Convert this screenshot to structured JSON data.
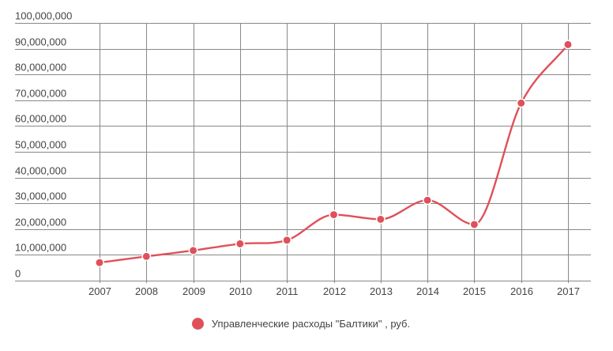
{
  "chart_data": {
    "type": "line",
    "title": "",
    "xlabel": "",
    "ylabel": "",
    "categories": [
      "2007",
      "2008",
      "2009",
      "2010",
      "2011",
      "2012",
      "2013",
      "2014",
      "2015",
      "2016",
      "2017"
    ],
    "series": [
      {
        "name": "Управленческие расходы \"Балтики\" , руб.",
        "color": "#e0505a",
        "values": [
          7000000,
          9400000,
          11700000,
          14300000,
          15700000,
          25600000,
          23800000,
          31200000,
          21800000,
          68900000,
          91600000
        ]
      }
    ],
    "ylim": [
      0,
      100000000
    ],
    "y_ticks": [
      0,
      10000000,
      20000000,
      30000000,
      40000000,
      50000000,
      60000000,
      70000000,
      80000000,
      90000000,
      100000000
    ],
    "y_tick_labels": [
      "0",
      "10,000,000",
      "20,000,000",
      "30,000,000",
      "40,000,000",
      "50,000,000",
      "60,000,000",
      "70,000,000",
      "80,000,000",
      "90,000,000",
      "100,000,000"
    ],
    "grid": true,
    "smooth": true,
    "legend_position": "bottom"
  },
  "legend": {
    "label": "Управленческие расходы \"Балтики\" , руб."
  },
  "colors": {
    "series": "#e0505a",
    "grid": "#888888",
    "text": "#444444"
  }
}
